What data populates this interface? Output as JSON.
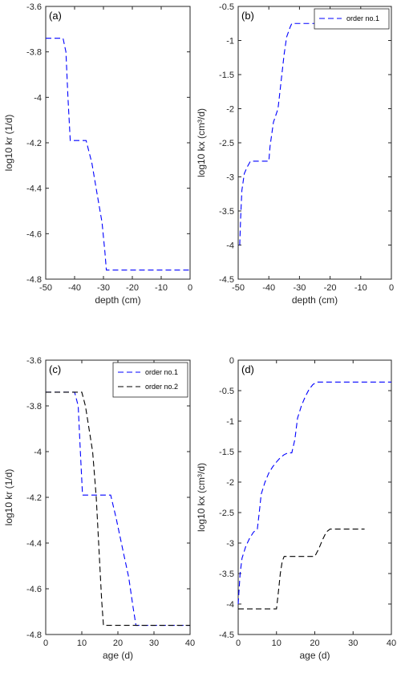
{
  "chart_data": [
    {
      "panel_label": "(a)",
      "type": "line",
      "xlabel": "depth (cm)",
      "ylabel": "log10 kr (1/d)",
      "xlim": [
        -50,
        0
      ],
      "ylim": [
        -4.8,
        -3.6
      ],
      "xticks": [
        -50,
        -40,
        -30,
        -20,
        -10,
        0
      ],
      "xtick_labels": [
        "-50",
        "-40",
        "-30",
        "-20",
        "-10",
        "0"
      ],
      "yticks": [
        -4.8,
        -4.6,
        -4.4,
        -4.2,
        -4,
        -3.8,
        -3.6
      ],
      "ytick_labels": [
        "-4.8",
        "-4.6",
        "-4.4",
        "-4.2",
        "-4",
        "-3.8",
        "-3.6"
      ],
      "legend": null,
      "series": [
        {
          "color": "#0000ff",
          "x": [
            -50,
            -44,
            -43,
            -42.3,
            -41.5,
            -36,
            -34,
            -32,
            -30.5,
            -29.5,
            -29,
            0
          ],
          "y": [
            -3.74,
            -3.74,
            -3.8,
            -4.0,
            -4.19,
            -4.19,
            -4.29,
            -4.44,
            -4.55,
            -4.68,
            -4.76,
            -4.76
          ]
        }
      ]
    },
    {
      "panel_label": "(b)",
      "type": "line",
      "xlabel": "depth (cm)",
      "ylabel": "log10 kx (cm³/d)",
      "xlim": [
        -50,
        0
      ],
      "ylim": [
        -4.5,
        -0.5
      ],
      "xticks": [
        -50,
        -40,
        -30,
        -20,
        -10,
        0
      ],
      "xtick_labels": [
        "-50",
        "-40",
        "-30",
        "-20",
        "-10",
        "0"
      ],
      "yticks": [
        -4.5,
        -4,
        -3.5,
        -3,
        -2.5,
        -2,
        -1.5,
        -1,
        -0.5
      ],
      "ytick_labels": [
        "-4.5",
        "-4",
        "-3.5",
        "-3",
        "-2.5",
        "-2",
        "-1.5",
        "-1",
        "-0.5"
      ],
      "legend": {
        "position": "top-right",
        "entries": [
          "order no.1"
        ]
      },
      "series": [
        {
          "name": "order no.1",
          "color": "#0000ff",
          "x": [
            -49.5,
            -49.2,
            -48.8,
            -48,
            -47,
            -46,
            -40,
            -39.6,
            -38.5,
            -37,
            -36,
            -35,
            -34.2,
            -33,
            -32.5,
            0
          ],
          "y": [
            -4.0,
            -3.6,
            -3.2,
            -2.95,
            -2.85,
            -2.77,
            -2.77,
            -2.55,
            -2.2,
            -2.0,
            -1.6,
            -1.2,
            -0.95,
            -0.8,
            -0.75,
            -0.75
          ]
        }
      ]
    },
    {
      "panel_label": "(c)",
      "type": "line",
      "xlabel": "age (d)",
      "ylabel": "log10 kr (1/d)",
      "xlim": [
        0,
        40
      ],
      "ylim": [
        -4.8,
        -3.6
      ],
      "xticks": [
        0,
        10,
        20,
        30,
        40
      ],
      "xtick_labels": [
        "0",
        "10",
        "20",
        "30",
        "40"
      ],
      "yticks": [
        -4.8,
        -4.6,
        -4.4,
        -4.2,
        -4,
        -3.8,
        -3.6
      ],
      "ytick_labels": [
        "-4.8",
        "-4.6",
        "-4.4",
        "-4.2",
        "-4",
        "-3.8",
        "-3.6"
      ],
      "legend": {
        "position": "top-right",
        "entries": [
          "order no.1",
          "order no.2"
        ]
      },
      "series": [
        {
          "name": "order no.1",
          "color": "#0000ff",
          "x": [
            0,
            8,
            9,
            9.6,
            10.2,
            18,
            19.5,
            21.5,
            23,
            24.2,
            25,
            40
          ],
          "y": [
            -3.74,
            -3.74,
            -3.8,
            -4.0,
            -4.19,
            -4.19,
            -4.29,
            -4.44,
            -4.55,
            -4.68,
            -4.76,
            -4.76
          ]
        },
        {
          "name": "order no.2",
          "color": "#000000",
          "x": [
            0,
            10,
            11,
            12,
            13,
            14,
            14.5,
            15,
            15.5,
            16,
            40
          ],
          "y": [
            -3.74,
            -3.74,
            -3.8,
            -3.9,
            -4.0,
            -4.2,
            -4.35,
            -4.5,
            -4.65,
            -4.76,
            -4.76
          ]
        }
      ]
    },
    {
      "panel_label": "(d)",
      "type": "line",
      "xlabel": "age (d)",
      "ylabel": "log10 kx (cm³/d)",
      "xlim": [
        0,
        40
      ],
      "ylim": [
        -4.5,
        0
      ],
      "xticks": [
        0,
        10,
        20,
        30,
        40
      ],
      "xtick_labels": [
        "0",
        "10",
        "20",
        "30",
        "40"
      ],
      "yticks": [
        -4.5,
        -4,
        -3.5,
        -3,
        -2.5,
        -2,
        -1.5,
        -1,
        -0.5,
        0
      ],
      "ytick_labels": [
        "-4.5",
        "-4",
        "-3.5",
        "-3",
        "-2.5",
        "-2",
        "-1.5",
        "-1",
        "-0.5",
        "0"
      ],
      "legend": null,
      "series": [
        {
          "name": "order no.1",
          "color": "#0000ff",
          "x": [
            0,
            0.5,
            1,
            2,
            3,
            4,
            5,
            5.5,
            6,
            7,
            8,
            9,
            10,
            11,
            12,
            13,
            14,
            14.8,
            15.5,
            16.5,
            17.5,
            18.5,
            19.5,
            20.5,
            40
          ],
          "y": [
            -4.0,
            -3.5,
            -3.25,
            -3.05,
            -2.92,
            -2.82,
            -2.77,
            -2.5,
            -2.2,
            -2.0,
            -1.85,
            -1.75,
            -1.67,
            -1.6,
            -1.55,
            -1.52,
            -1.52,
            -1.3,
            -0.95,
            -0.75,
            -0.6,
            -0.48,
            -0.4,
            -0.36,
            -0.36
          ]
        },
        {
          "name": "order no.2",
          "color": "#000000",
          "x": [
            0,
            10,
            10.5,
            11,
            11.5,
            12,
            20,
            21,
            22,
            23,
            24,
            33
          ],
          "y": [
            -4.08,
            -4.08,
            -3.8,
            -3.5,
            -3.3,
            -3.22,
            -3.22,
            -3.1,
            -2.95,
            -2.82,
            -2.77,
            -2.77
          ]
        }
      ]
    }
  ]
}
